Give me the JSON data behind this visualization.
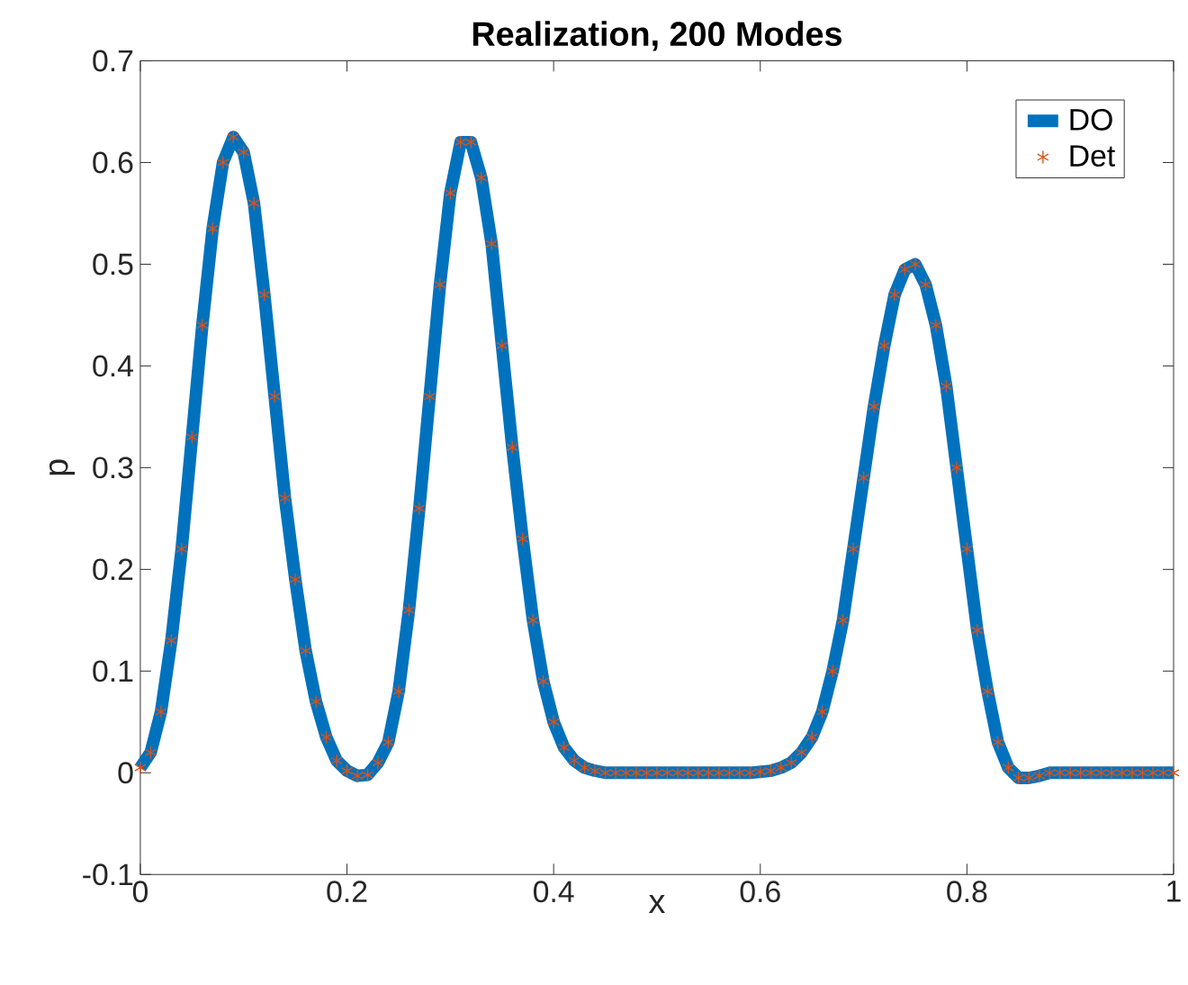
{
  "chart_data": {
    "type": "line",
    "title": "Realization, 200 Modes",
    "xlabel": "x",
    "ylabel": "p",
    "x": [
      0,
      0.01,
      0.02,
      0.03,
      0.04,
      0.05,
      0.06,
      0.07,
      0.08,
      0.09,
      0.1,
      0.11,
      0.12,
      0.13,
      0.14,
      0.15,
      0.16,
      0.17,
      0.18,
      0.19,
      0.2,
      0.21,
      0.22,
      0.23,
      0.24,
      0.25,
      0.26,
      0.27,
      0.28,
      0.29,
      0.3,
      0.31,
      0.32,
      0.33,
      0.34,
      0.35,
      0.36,
      0.37,
      0.38,
      0.39,
      0.4,
      0.41,
      0.42,
      0.43,
      0.44,
      0.45,
      0.46,
      0.47,
      0.48,
      0.49,
      0.5,
      0.51,
      0.52,
      0.53,
      0.54,
      0.55,
      0.56,
      0.57,
      0.58,
      0.59,
      0.6,
      0.61,
      0.62,
      0.63,
      0.64,
      0.65,
      0.66,
      0.67,
      0.68,
      0.69,
      0.7,
      0.71,
      0.72,
      0.73,
      0.74,
      0.75,
      0.76,
      0.77,
      0.78,
      0.79,
      0.8,
      0.81,
      0.82,
      0.83,
      0.84,
      0.85,
      0.86,
      0.87,
      0.88,
      0.89,
      0.9,
      0.91,
      0.92,
      0.93,
      0.94,
      0.95,
      0.96,
      0.97,
      0.98,
      0.99,
      1
    ],
    "series": [
      {
        "name": "DO",
        "color": "#0072bd",
        "marker": "none",
        "line_style": "solid",
        "values": [
          0.005,
          0.02,
          0.06,
          0.13,
          0.22,
          0.33,
          0.44,
          0.535,
          0.6,
          0.625,
          0.61,
          0.56,
          0.47,
          0.37,
          0.27,
          0.19,
          0.12,
          0.07,
          0.035,
          0.012,
          0.002,
          -0.003,
          -0.002,
          0.01,
          0.03,
          0.08,
          0.16,
          0.26,
          0.37,
          0.48,
          0.57,
          0.62,
          0.62,
          0.585,
          0.52,
          0.42,
          0.32,
          0.23,
          0.15,
          0.09,
          0.05,
          0.025,
          0.012,
          0.005,
          0.002,
          0,
          0,
          0,
          0,
          0,
          0,
          0,
          0,
          0,
          0,
          0,
          0,
          0,
          0,
          0,
          0.001,
          0.002,
          0.005,
          0.01,
          0.02,
          0.035,
          0.06,
          0.1,
          0.15,
          0.22,
          0.29,
          0.36,
          0.42,
          0.47,
          0.495,
          0.5,
          0.48,
          0.44,
          0.38,
          0.3,
          0.22,
          0.14,
          0.08,
          0.03,
          0.005,
          -0.005,
          -0.005,
          -0.003,
          0,
          0,
          0,
          0,
          0,
          0,
          0,
          0,
          0,
          0,
          0,
          0,
          0
        ]
      },
      {
        "name": "Det",
        "color": "#d95319",
        "type": "scatter",
        "marker": "cross",
        "values": [
          0.005,
          0.02,
          0.06,
          0.13,
          0.22,
          0.33,
          0.44,
          0.535,
          0.6,
          0.625,
          0.61,
          0.56,
          0.47,
          0.37,
          0.27,
          0.19,
          0.12,
          0.07,
          0.035,
          0.012,
          0.002,
          -0.003,
          -0.002,
          0.01,
          0.03,
          0.08,
          0.16,
          0.26,
          0.37,
          0.48,
          0.57,
          0.62,
          0.62,
          0.585,
          0.52,
          0.42,
          0.32,
          0.23,
          0.15,
          0.09,
          0.05,
          0.025,
          0.012,
          0.005,
          0.002,
          0,
          0,
          0,
          0,
          0,
          0,
          0,
          0,
          0,
          0,
          0,
          0,
          0,
          0,
          0,
          0.001,
          0.002,
          0.005,
          0.01,
          0.02,
          0.035,
          0.06,
          0.1,
          0.15,
          0.22,
          0.29,
          0.36,
          0.42,
          0.47,
          0.495,
          0.5,
          0.48,
          0.44,
          0.38,
          0.3,
          0.22,
          0.14,
          0.08,
          0.03,
          0.005,
          -0.005,
          -0.005,
          -0.003,
          0,
          0,
          0,
          0,
          0,
          0,
          0,
          0,
          0,
          0,
          0,
          0,
          0
        ]
      }
    ],
    "xlim": [
      0,
      1
    ],
    "xticks": [
      0,
      0.2,
      0.4,
      0.6,
      0.8,
      1
    ],
    "ylim": [
      -0.1,
      0.7
    ],
    "yticks": [
      -0.1,
      0,
      0.1,
      0.2,
      0.3,
      0.4,
      0.5,
      0.6,
      0.7
    ],
    "grid": false,
    "legend": "top right"
  }
}
